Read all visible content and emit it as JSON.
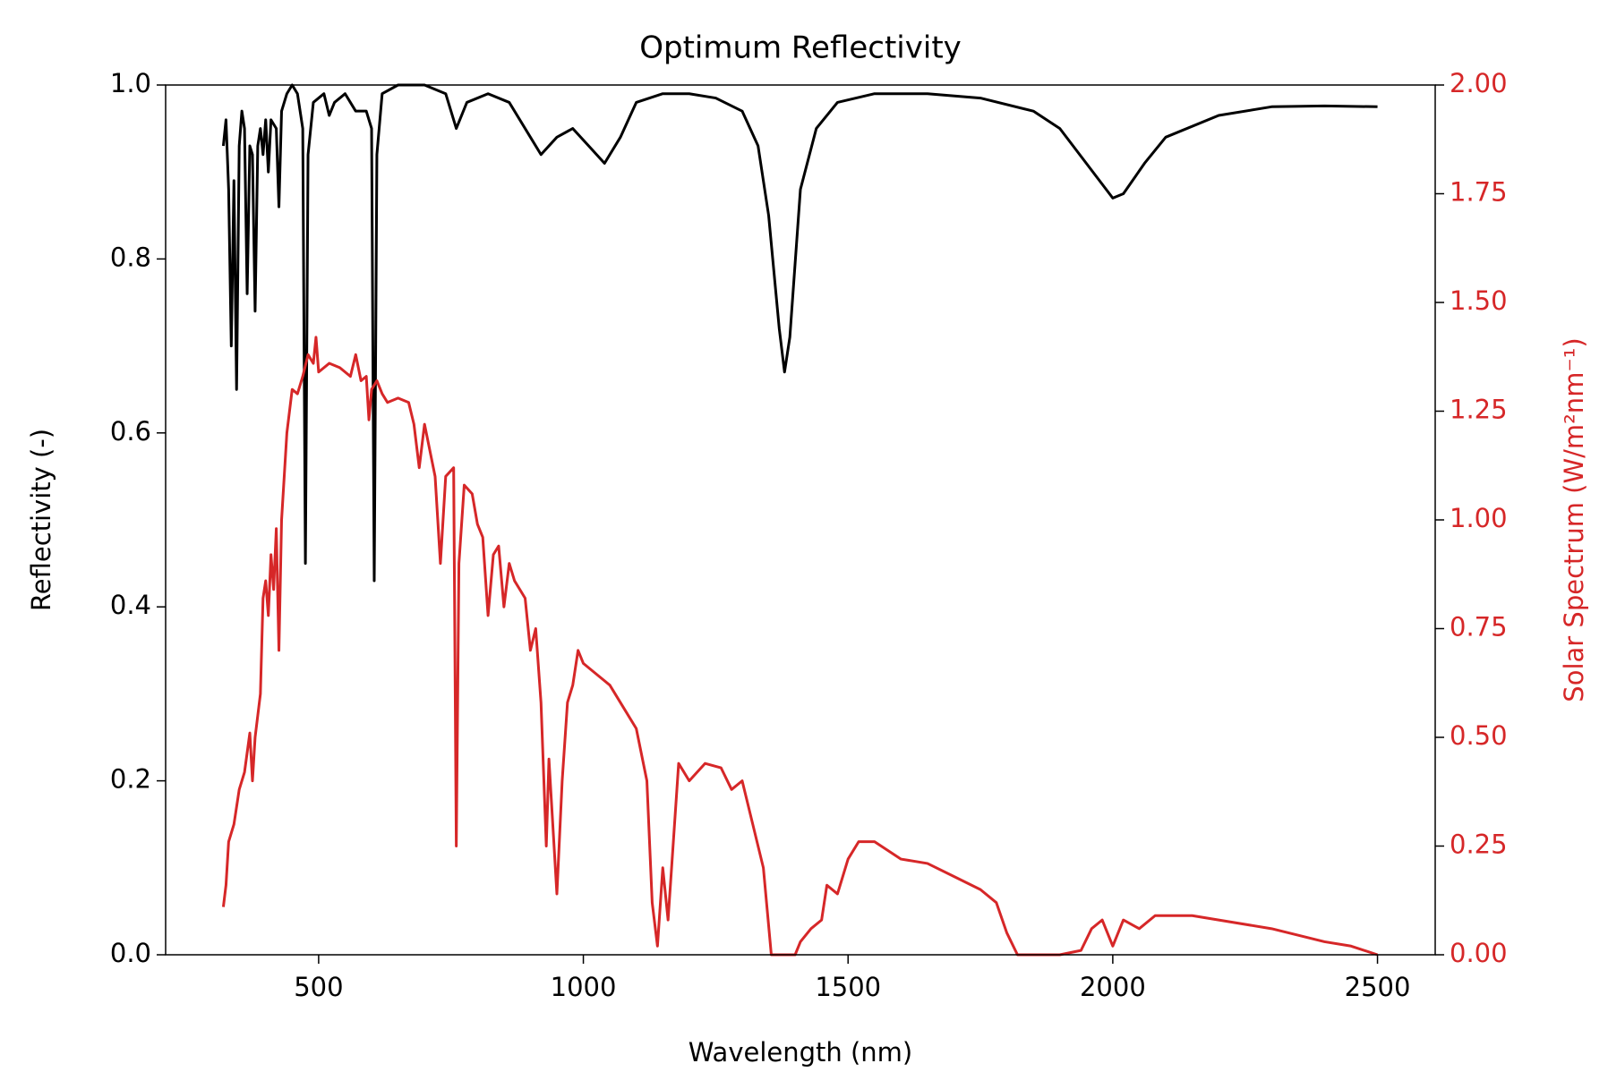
{
  "chart_data": {
    "type": "line",
    "title": "Optimum Reflectivity",
    "xlabel": "Wavelength (nm)",
    "ylabel": "Reflectivity (-)",
    "y2label": "Solar Spectrum (W/m²nm⁻¹)",
    "xlim": [
      211,
      2609
    ],
    "xticks": [
      500,
      1000,
      1500,
      2000,
      2500
    ],
    "ylim": [
      0,
      1
    ],
    "yticks": [
      {
        "value": 0,
        "label": "0.0"
      },
      {
        "value": 0.2,
        "label": "0.2"
      },
      {
        "value": 0.4,
        "label": "0.4"
      },
      {
        "value": 0.6,
        "label": "0.6"
      },
      {
        "value": 0.8,
        "label": "0.8"
      },
      {
        "value": 1,
        "label": "1.0"
      }
    ],
    "y2lim": [
      0,
      2
    ],
    "y2ticks": [
      {
        "value": 0,
        "label": "0.00"
      },
      {
        "value": 0.25,
        "label": "0.25"
      },
      {
        "value": 0.5,
        "label": "0.50"
      },
      {
        "value": 0.75,
        "label": "0.75"
      },
      {
        "value": 1,
        "label": "1.00"
      },
      {
        "value": 1.25,
        "label": "1.25"
      },
      {
        "value": 1.5,
        "label": "1.50"
      },
      {
        "value": 1.75,
        "label": "1.75"
      },
      {
        "value": 2,
        "label": "2.00"
      }
    ],
    "y2color": "#d62728",
    "series": [
      {
        "name": "Reflectivity",
        "color": "#000000",
        "x": [
          320,
          325,
          330,
          335,
          340,
          345,
          350,
          355,
          360,
          365,
          370,
          375,
          380,
          385,
          390,
          395,
          400,
          405,
          410,
          420,
          425,
          430,
          440,
          450,
          460,
          470,
          475,
          480,
          490,
          500,
          510,
          520,
          530,
          550,
          570,
          590,
          600,
          605,
          610,
          620,
          650,
          700,
          740,
          760,
          780,
          820,
          860,
          900,
          920,
          950,
          980,
          1010,
          1040,
          1070,
          1100,
          1150,
          1200,
          1250,
          1300,
          1330,
          1350,
          1370,
          1380,
          1390,
          1410,
          1440,
          1480,
          1550,
          1650,
          1750,
          1850,
          1900,
          1950,
          2000,
          2020,
          2060,
          2100,
          2200,
          2300,
          2400,
          2500
        ],
        "values": [
          0.93,
          0.96,
          0.88,
          0.7,
          0.89,
          0.65,
          0.93,
          0.97,
          0.95,
          0.76,
          0.93,
          0.92,
          0.74,
          0.93,
          0.95,
          0.92,
          0.96,
          0.9,
          0.96,
          0.95,
          0.86,
          0.97,
          0.99,
          1.0,
          0.99,
          0.95,
          0.45,
          0.92,
          0.98,
          0.985,
          0.99,
          0.965,
          0.98,
          0.99,
          0.97,
          0.97,
          0.95,
          0.43,
          0.92,
          0.99,
          1.0,
          1.0,
          0.99,
          0.95,
          0.98,
          0.99,
          0.98,
          0.94,
          0.92,
          0.94,
          0.95,
          0.93,
          0.91,
          0.94,
          0.98,
          0.99,
          0.99,
          0.985,
          0.97,
          0.93,
          0.85,
          0.72,
          0.67,
          0.71,
          0.88,
          0.95,
          0.98,
          0.99,
          0.99,
          0.985,
          0.97,
          0.95,
          0.91,
          0.87,
          0.875,
          0.91,
          0.94,
          0.965,
          0.975,
          0.976,
          0.975
        ]
      },
      {
        "name": "Solar Spectrum",
        "color": "#d62728",
        "axis": "y2",
        "x": [
          320,
          325,
          330,
          340,
          350,
          360,
          370,
          375,
          380,
          390,
          395,
          400,
          405,
          410,
          415,
          420,
          425,
          430,
          440,
          450,
          460,
          470,
          480,
          490,
          495,
          500,
          520,
          540,
          560,
          570,
          580,
          590,
          595,
          600,
          610,
          620,
          630,
          650,
          670,
          680,
          690,
          700,
          720,
          730,
          740,
          755,
          760,
          765,
          775,
          790,
          800,
          810,
          820,
          830,
          840,
          850,
          860,
          870,
          880,
          890,
          900,
          910,
          920,
          930,
          935,
          950,
          960,
          970,
          980,
          990,
          1000,
          1020,
          1050,
          1080,
          1100,
          1120,
          1130,
          1140,
          1150,
          1160,
          1180,
          1200,
          1230,
          1260,
          1280,
          1300,
          1320,
          1340,
          1355,
          1400,
          1410,
          1430,
          1450,
          1460,
          1480,
          1500,
          1520,
          1550,
          1600,
          1650,
          1700,
          1750,
          1780,
          1800,
          1820,
          1900,
          1940,
          1960,
          1980,
          2000,
          2020,
          2050,
          2080,
          2150,
          2200,
          2300,
          2400,
          2450,
          2500
        ],
        "values": [
          0.11,
          0.16,
          0.26,
          0.3,
          0.38,
          0.42,
          0.51,
          0.4,
          0.5,
          0.6,
          0.82,
          0.86,
          0.78,
          0.92,
          0.84,
          0.98,
          0.7,
          1.0,
          1.2,
          1.3,
          1.29,
          1.33,
          1.38,
          1.36,
          1.42,
          1.34,
          1.36,
          1.35,
          1.33,
          1.38,
          1.32,
          1.33,
          1.23,
          1.3,
          1.32,
          1.29,
          1.27,
          1.28,
          1.27,
          1.22,
          1.12,
          1.22,
          1.1,
          0.9,
          1.1,
          1.12,
          0.25,
          0.9,
          1.08,
          1.06,
          0.99,
          0.96,
          0.78,
          0.92,
          0.94,
          0.8,
          0.9,
          0.86,
          0.84,
          0.82,
          0.7,
          0.75,
          0.58,
          0.25,
          0.45,
          0.14,
          0.4,
          0.58,
          0.62,
          0.7,
          0.67,
          0.65,
          0.62,
          0.56,
          0.52,
          0.4,
          0.12,
          0.02,
          0.2,
          0.08,
          0.44,
          0.4,
          0.44,
          0.43,
          0.38,
          0.4,
          0.3,
          0.2,
          0.0,
          0.0,
          0.03,
          0.06,
          0.08,
          0.16,
          0.14,
          0.22,
          0.26,
          0.26,
          0.22,
          0.21,
          0.18,
          0.15,
          0.12,
          0.05,
          0.0,
          0.0,
          0.01,
          0.06,
          0.08,
          0.02,
          0.08,
          0.06,
          0.09,
          0.09,
          0.08,
          0.06,
          0.03,
          0.02,
          0.0
        ]
      }
    ]
  }
}
